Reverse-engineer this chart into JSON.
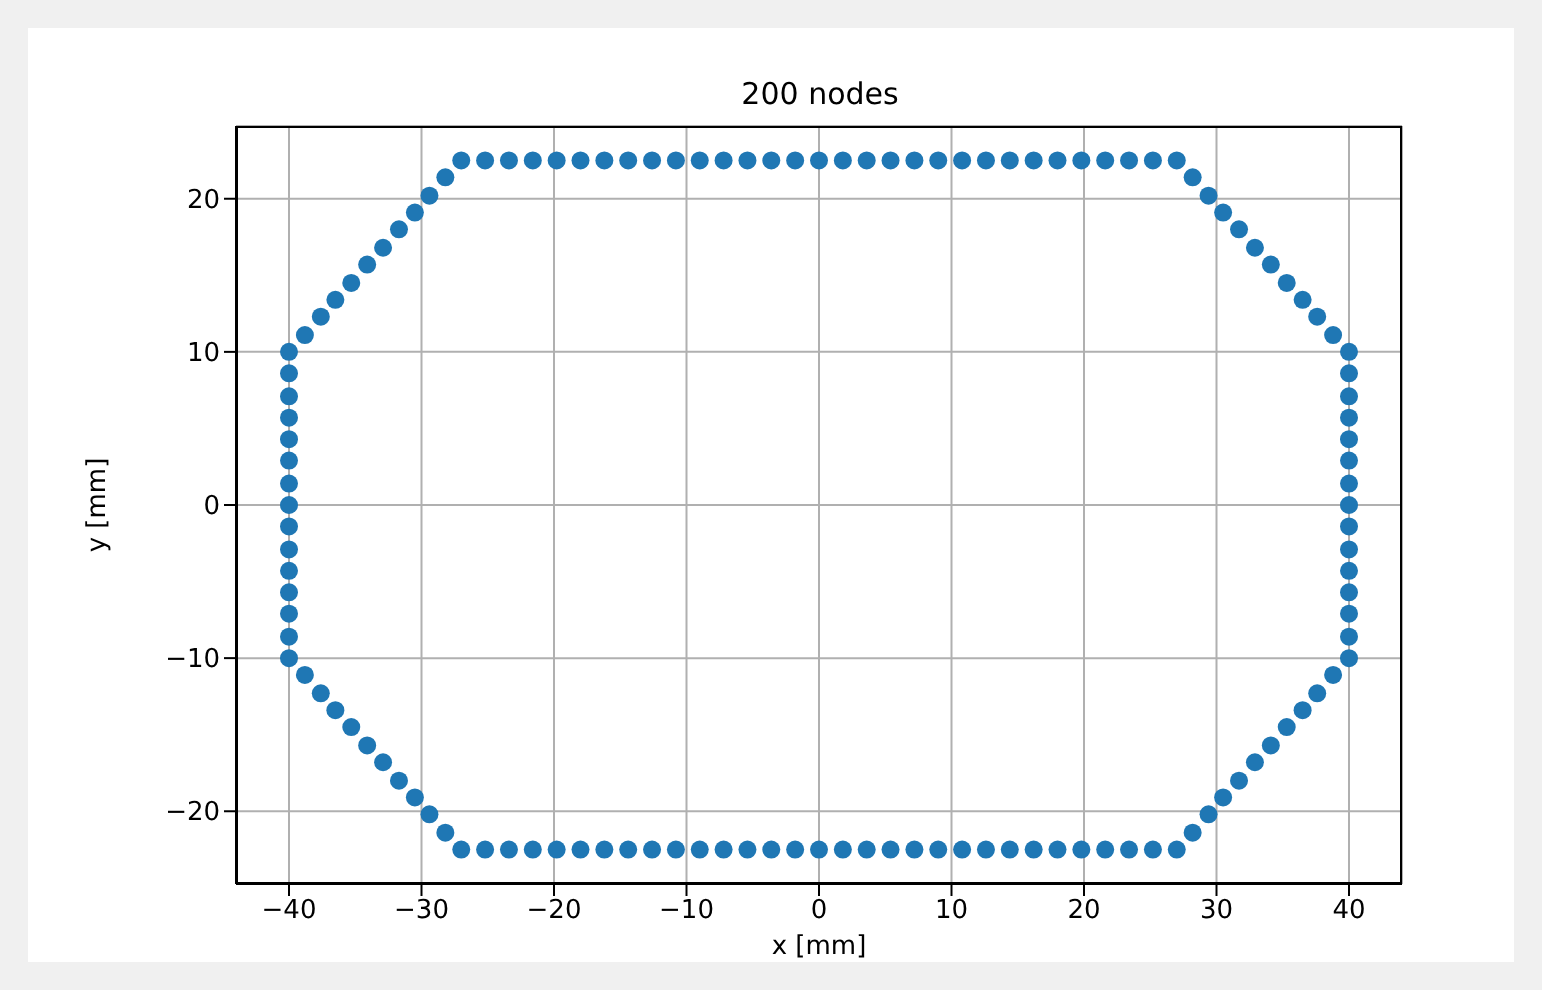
{
  "chart_data": {
    "type": "scatter",
    "title": "200 nodes",
    "xlabel": "x [mm]",
    "ylabel": "y [mm]",
    "grid": true,
    "marker": "circle",
    "xlim": [
      -44,
      44
    ],
    "xticks": [
      -40,
      -30,
      -20,
      -10,
      0,
      10,
      20,
      30,
      40
    ],
    "ylim": [
      -24.75,
      24.75
    ],
    "yticks": [
      -20,
      -10,
      0,
      10,
      20
    ],
    "series": [
      {
        "color": "#1f77b4",
        "x": [
          -40,
          -40,
          -40,
          -40,
          -40,
          -40,
          -40,
          -40,
          -40,
          -40,
          -40,
          -40,
          -40,
          -40,
          -40,
          -38.8,
          -37.6,
          -36.5,
          -35.3,
          -34.1,
          -32.9,
          -31.7,
          -30.5,
          -29.4,
          -28.2,
          -27,
          -25.2,
          -23.4,
          -21.6,
          -19.8,
          -18,
          -16.2,
          -14.4,
          -12.6,
          -10.8,
          -9,
          -7.2,
          -5.4,
          -3.6,
          -1.8,
          0,
          1.8,
          3.6,
          5.4,
          7.2,
          9,
          10.8,
          12.6,
          14.4,
          16.2,
          18,
          19.8,
          21.6,
          23.4,
          25.2,
          27,
          28.2,
          29.4,
          30.5,
          31.7,
          32.9,
          34.1,
          35.3,
          36.5,
          37.6,
          38.8,
          40,
          40,
          40,
          40,
          40,
          40,
          40,
          40,
          40,
          40,
          40,
          40,
          40,
          40,
          40,
          38.8,
          37.6,
          36.5,
          35.3,
          34.1,
          32.9,
          31.7,
          30.5,
          29.4,
          28.2,
          27,
          25.2,
          23.4,
          21.6,
          19.8,
          18,
          16.2,
          14.4,
          12.6,
          10.8,
          9,
          7.2,
          5.4,
          3.6,
          1.8,
          0,
          -1.8,
          -3.6,
          -5.4,
          -7.2,
          -9,
          -10.8,
          -12.6,
          -14.4,
          -16.2,
          -18,
          -19.8,
          -21.6,
          -23.4,
          -25.2,
          -27,
          -28.2,
          -29.4,
          -30.5,
          -31.7,
          -32.9,
          -34.1,
          -35.3,
          -36.5,
          -37.6,
          -38.8
        ],
        "values": [
          -10,
          -8.6,
          -7.1,
          -5.7,
          -4.3,
          -2.9,
          -1.4,
          0,
          1.4,
          2.9,
          4.3,
          5.7,
          7.1,
          8.6,
          10,
          11.1,
          12.3,
          13.4,
          14.5,
          15.7,
          16.8,
          18.0,
          19.1,
          20.2,
          21.4,
          22.5,
          22.5,
          22.5,
          22.5,
          22.5,
          22.5,
          22.5,
          22.5,
          22.5,
          22.5,
          22.5,
          22.5,
          22.5,
          22.5,
          22.5,
          22.5,
          22.5,
          22.5,
          22.5,
          22.5,
          22.5,
          22.5,
          22.5,
          22.5,
          22.5,
          22.5,
          22.5,
          22.5,
          22.5,
          22.5,
          22.5,
          21.4,
          20.2,
          19.1,
          18.0,
          16.8,
          15.7,
          14.5,
          13.4,
          12.3,
          11.1,
          10,
          8.6,
          7.1,
          5.7,
          4.3,
          2.9,
          1.4,
          0,
          -1.4,
          -2.9,
          -4.3,
          -5.7,
          -7.1,
          -8.6,
          -10,
          -11.1,
          -12.3,
          -13.4,
          -14.5,
          -15.7,
          -16.8,
          -18.0,
          -19.1,
          -20.2,
          -21.4,
          -22.5,
          -22.5,
          -22.5,
          -22.5,
          -22.5,
          -22.5,
          -22.5,
          -22.5,
          -22.5,
          -22.5,
          -22.5,
          -22.5,
          -22.5,
          -22.5,
          -22.5,
          -22.5,
          -22.5,
          -22.5,
          -22.5,
          -22.5,
          -22.5,
          -22.5,
          -22.5,
          -22.5,
          -22.5,
          -22.5,
          -22.5,
          -22.5,
          -22.5,
          -22.5,
          -22.5,
          -21.4,
          -20.2,
          -19.1,
          -18.0,
          -16.8,
          -15.7,
          -14.5,
          -13.4,
          -12.3,
          -11.1
        ]
      }
    ]
  }
}
